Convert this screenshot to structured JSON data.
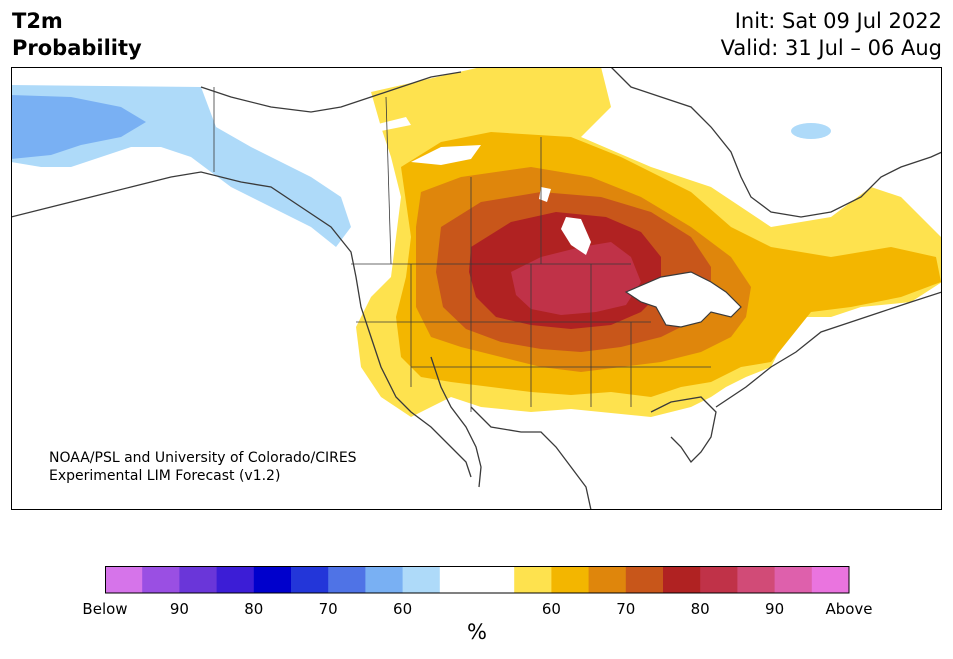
{
  "header": {
    "title_line1": "T2m",
    "title_line2": "Probability",
    "init": "Init: Sat 09 Jul 2022",
    "valid": "Valid: 31 Jul – 06 Aug"
  },
  "credit": {
    "line1": "NOAA/PSL and University of Colorado/CIRES",
    "line2": "Experimental LIM Forecast (v1.2)"
  },
  "colorbar": {
    "colors": [
      "#d674ea",
      "#9a4fe3",
      "#6a36d9",
      "#3c1dd6",
      "#0000cc",
      "#2336d9",
      "#4f73e6",
      "#79b0f3",
      "#aedaf9",
      "#ffffff",
      "#ffffff",
      "#fee24e",
      "#f3b600",
      "#df860c",
      "#c8561a",
      "#b02222",
      "#c03248",
      "#d14b77",
      "#de60ac",
      "#ea74df"
    ],
    "ticks": [
      "Below",
      "90",
      "80",
      "70",
      "60",
      "60",
      "70",
      "80",
      "90",
      "Above"
    ],
    "unit": "%"
  },
  "map_colors": {
    "land_neutral": "#ffffff",
    "ocean": "#ffffff",
    "above_60": "#fee24e",
    "above_70": "#f3b600",
    "above_80": "#df860c",
    "above_90": "#c8561a",
    "above_95": "#b02222",
    "above_max": "#c03248",
    "below_60": "#aedaf9",
    "below_70": "#79b0f3",
    "border": "#3a3a3a"
  }
}
